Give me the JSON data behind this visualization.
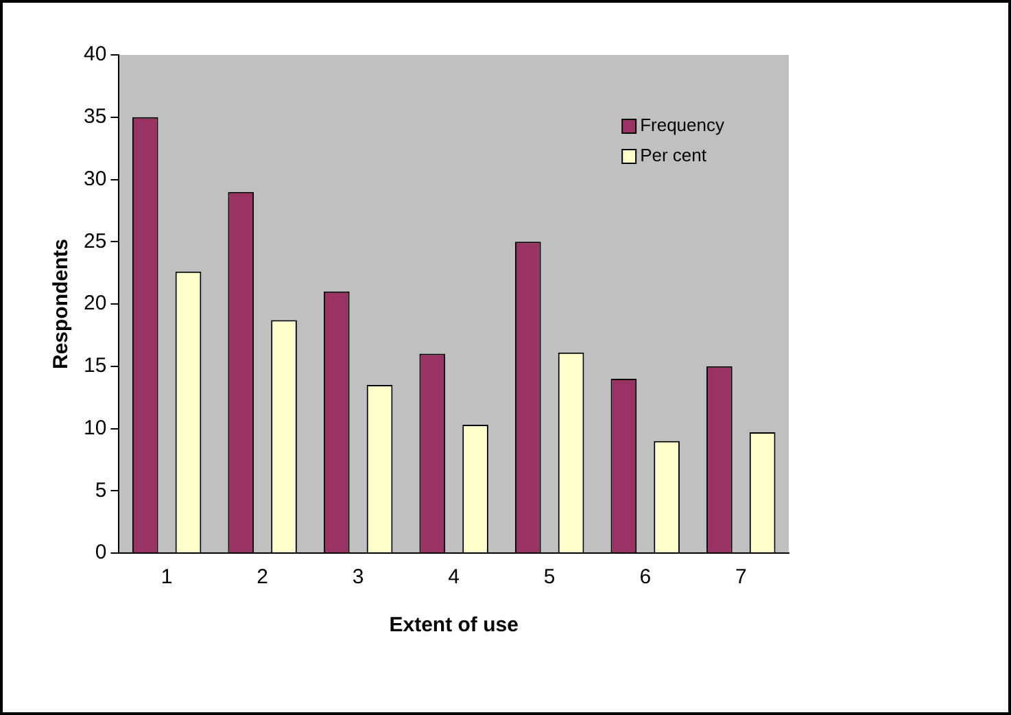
{
  "chart_data": {
    "type": "bar",
    "xlabel": "Extent of use",
    "ylabel": "Respondents",
    "categories": [
      "1",
      "2",
      "3",
      "4",
      "5",
      "6",
      "7"
    ],
    "series": [
      {
        "name": "Frequency",
        "color": "#993366",
        "values": [
          35,
          29,
          21,
          16,
          25,
          14,
          15
        ]
      },
      {
        "name": "Per cent",
        "color": "#ffffcc",
        "values": [
          22.6,
          18.7,
          13.5,
          10.3,
          16.1,
          9.0,
          9.7
        ]
      }
    ],
    "ylim": [
      0,
      40
    ],
    "yticks": [
      0,
      5,
      10,
      15,
      20,
      25,
      30,
      35,
      40
    ],
    "grid": false,
    "legend": "top right"
  }
}
